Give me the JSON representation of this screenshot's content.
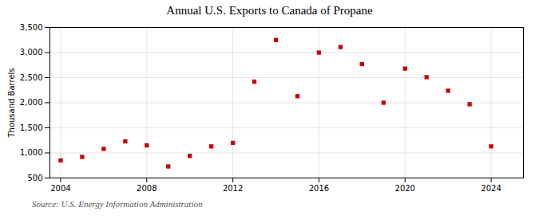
{
  "chart_data": {
    "type": "scatter",
    "title": "Annual U.S. Exports to Canada of Propane",
    "ylabel": "Thousand Barrels",
    "annotation": "Source: U.S. Energy Information Administration",
    "x": [
      2004,
      2005,
      2006,
      2007,
      2008,
      2009,
      2010,
      2011,
      2012,
      2013,
      2014,
      2015,
      2016,
      2017,
      2018,
      2019,
      2020,
      2021,
      2022,
      2023,
      2024
    ],
    "values": [
      850,
      920,
      1080,
      1230,
      1150,
      730,
      940,
      1130,
      1200,
      2420,
      3250,
      2130,
      3000,
      3110,
      2770,
      2000,
      2680,
      2510,
      2240,
      1970,
      1130
    ],
    "color": "#cc0000",
    "marker": "square",
    "xlim": [
      2003.5,
      2025.5
    ],
    "xticks": [
      2004,
      2008,
      2012,
      2016,
      2020,
      2024
    ],
    "ylim": [
      500,
      3500
    ],
    "yticks": [
      500,
      {
        "value": 1000,
        "label": "1,000"
      },
      {
        "value": 1500,
        "label": "1,500"
      },
      {
        "value": 2000,
        "label": "2,000"
      },
      {
        "value": 2500,
        "label": "2,500"
      },
      {
        "value": 3000,
        "label": "3,000"
      },
      {
        "value": 3500,
        "label": "3,500"
      }
    ],
    "grid": true
  }
}
